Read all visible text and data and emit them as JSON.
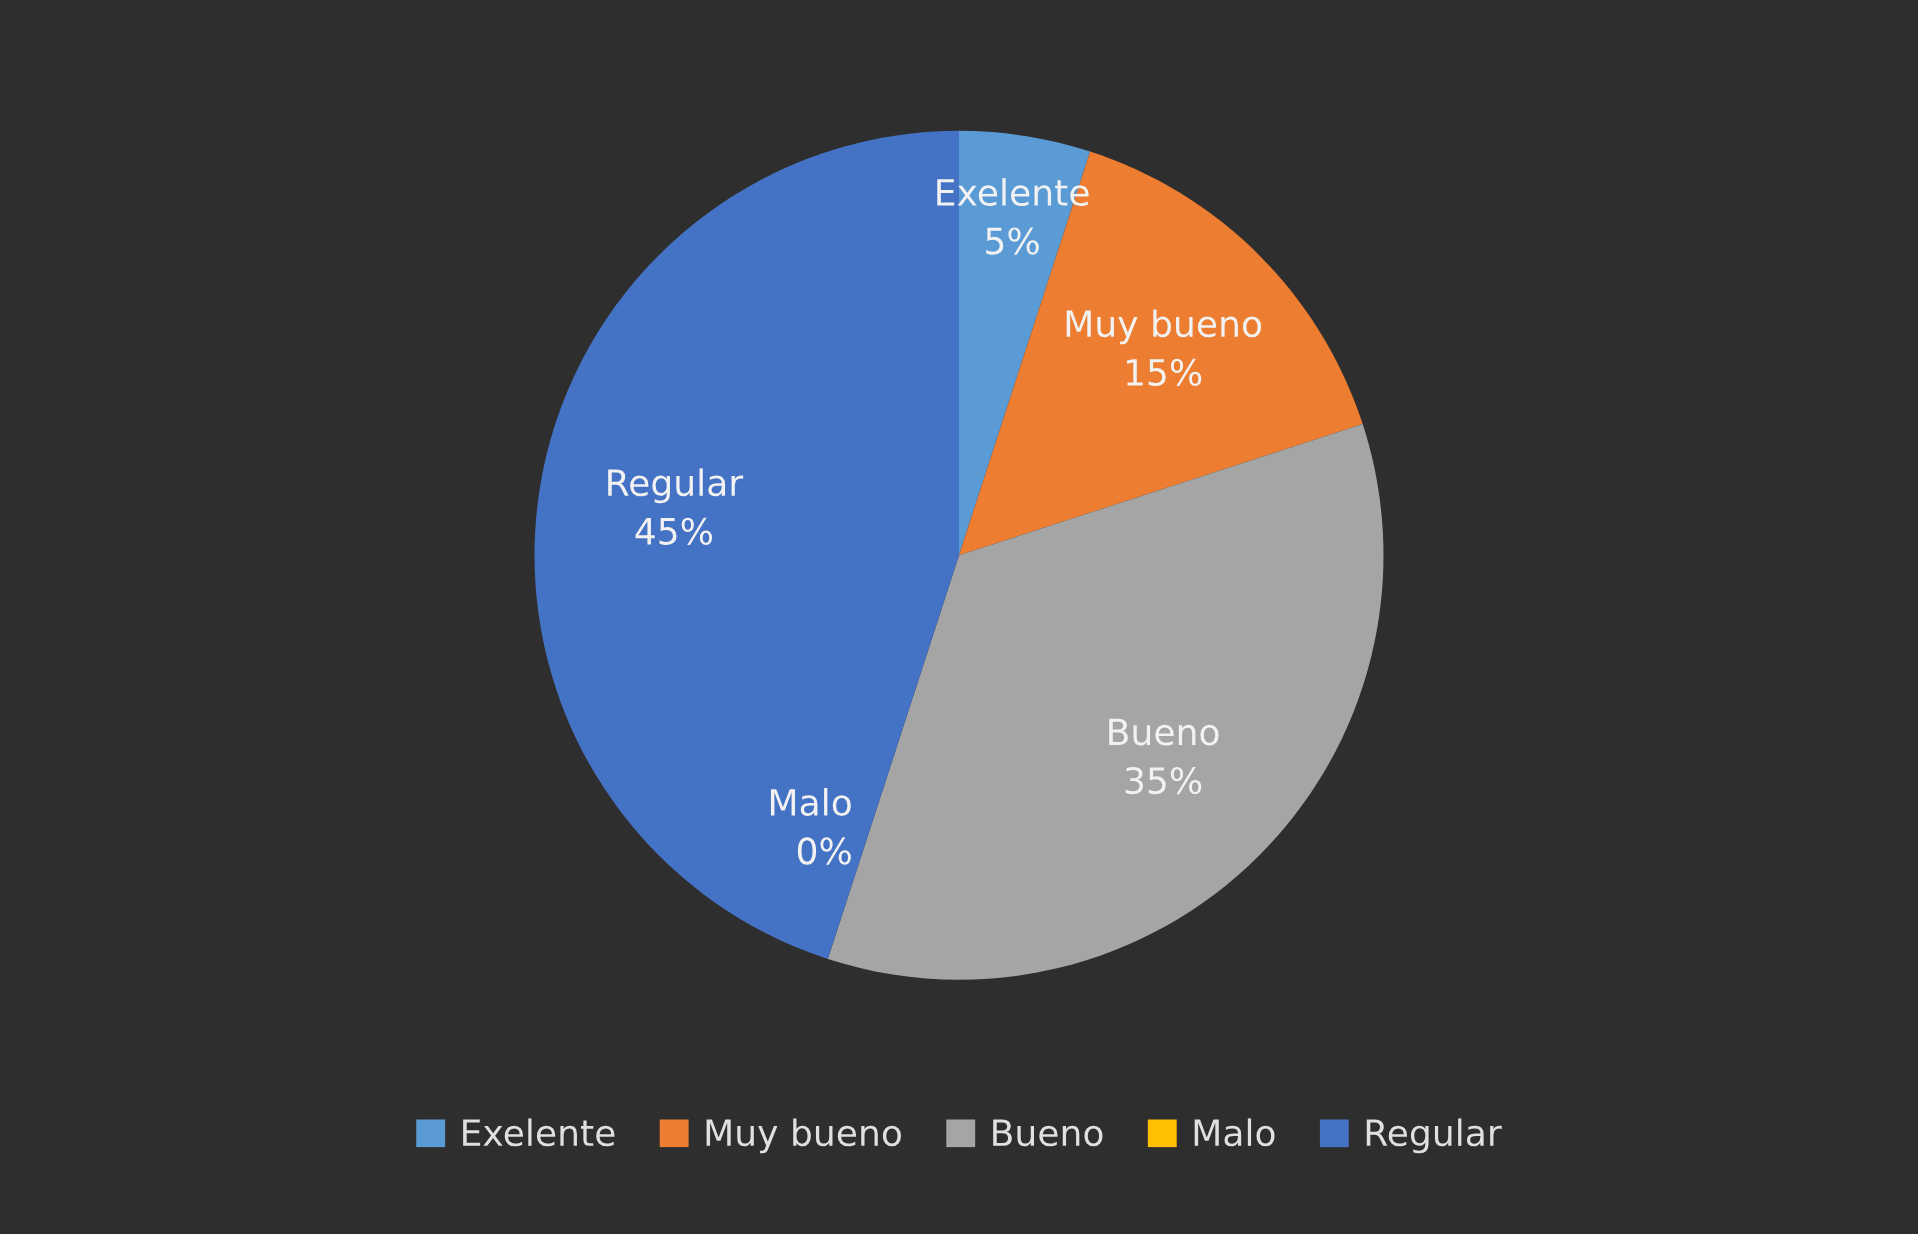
{
  "chart_data": {
    "type": "pie",
    "categories": [
      "Exelente",
      "Muy bueno",
      "Bueno",
      "Malo",
      "Regular"
    ],
    "values": [
      5,
      15,
      35,
      0,
      45
    ],
    "colors": [
      "#5b9bd5",
      "#ed7d31",
      "#a5a5a5",
      "#ffc000",
      "#4472c4"
    ],
    "value_labels": [
      "5%",
      "15%",
      "35%",
      "0%",
      "45%"
    ],
    "legend": "bottom"
  }
}
